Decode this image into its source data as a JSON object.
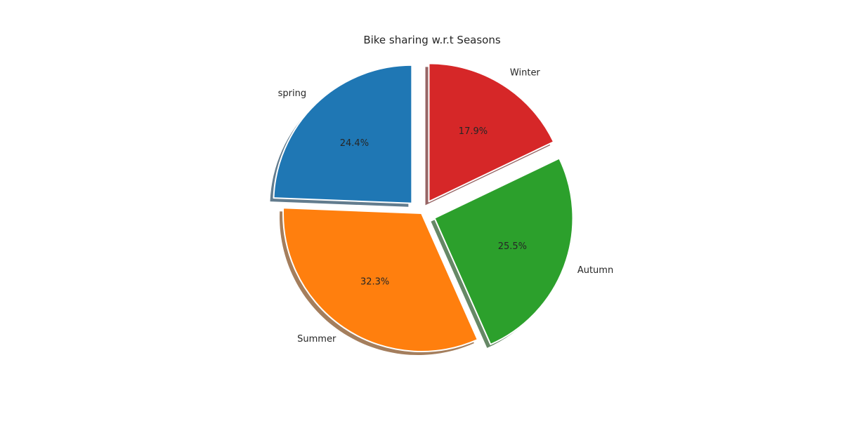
{
  "chart_data": {
    "type": "pie",
    "title": "Bike sharing w.r.t Seasons",
    "startangle_deg": 90,
    "direction": "counterclockwise",
    "shadow": true,
    "slices": [
      {
        "label": "spring",
        "value": 24.4,
        "pct_label": "24.4%",
        "color": "#1f77b4",
        "explode": 0.1
      },
      {
        "label": "Summer",
        "value": 32.3,
        "pct_label": "32.3%",
        "color": "#ff7f0e",
        "explode": 0.0
      },
      {
        "label": "Autumn",
        "value": 25.5,
        "pct_label": "25.5%",
        "color": "#2ca02c",
        "explode": 0.1
      },
      {
        "label": "Winter",
        "value": 17.9,
        "pct_label": "17.9%",
        "color": "#d62728",
        "explode": 0.1
      }
    ]
  }
}
